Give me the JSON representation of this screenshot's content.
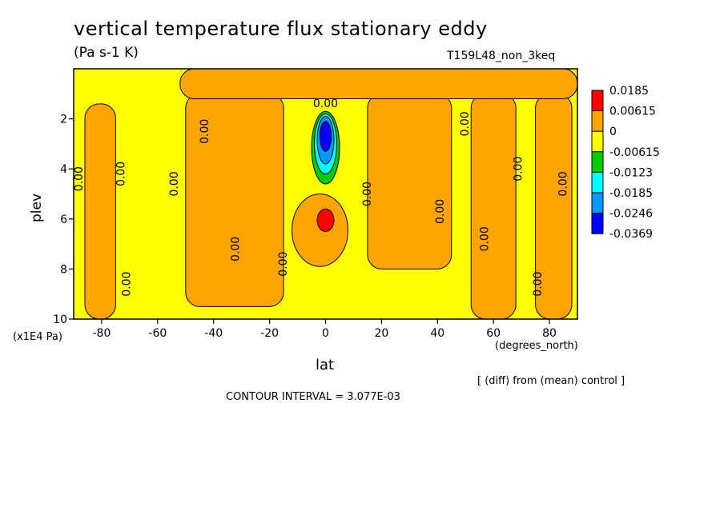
{
  "chart_data": {
    "type": "heatmap",
    "title": "vertical temperature flux stationary eddy",
    "units": "(Pa s-1 K)",
    "run_label": "T159L48_non_3keq",
    "xlabel": "lat",
    "x_unit": "(degrees_north)",
    "ylabel": "plev",
    "y_unit": "(x1E4 Pa)",
    "xlim": [
      -90,
      90
    ],
    "ylim": [
      10,
      0
    ],
    "x_ticks": [
      "-80",
      "-60",
      "-40",
      "-20",
      "0",
      "20",
      "40",
      "60",
      "80"
    ],
    "y_ticks": [
      "2",
      "4",
      "6",
      "8",
      "10"
    ],
    "legend": {
      "levels": [
        "0.0185",
        "0.00615",
        "0",
        "-0.00615",
        "-0.0123",
        "-0.0185",
        "-0.0246",
        "-0.0369"
      ],
      "colors": [
        "#ff0000",
        "#ffa500",
        "#ffff00",
        "#00cc00",
        "#00ffff",
        "#0099ff",
        "#0000ff"
      ]
    },
    "contour_label": "0.00",
    "diff_note": "[ (diff) from (mean) control ]",
    "contour_interval": "CONTOUR INTERVAL = 3.077E-03",
    "background_color": "#ffff00",
    "regions": [
      {
        "name": "positive-band",
        "color": "#ffa500",
        "bounds": {
          "lat": [
            -86,
            -75
          ],
          "plev": [
            1.4,
            10
          ]
        }
      },
      {
        "name": "positive-band",
        "color": "#ffa500",
        "bounds": {
          "lat": [
            -50,
            -15
          ],
          "plev": [
            1.0,
            9.5
          ]
        }
      },
      {
        "name": "positive-band",
        "color": "#ffa500",
        "bounds": {
          "lat": [
            15,
            45
          ],
          "plev": [
            1.0,
            8.0
          ]
        }
      },
      {
        "name": "positive-band",
        "color": "#ffa500",
        "bounds": {
          "lat": [
            52,
            68
          ],
          "plev": [
            1.0,
            10
          ]
        }
      },
      {
        "name": "positive-band",
        "color": "#ffa500",
        "bounds": {
          "lat": [
            75,
            88
          ],
          "plev": [
            1.0,
            10
          ]
        }
      },
      {
        "name": "positive-top",
        "color": "#ffa500",
        "bounds": {
          "lat": [
            -52,
            90
          ],
          "plev": [
            0,
            1.2
          ]
        }
      },
      {
        "name": "positive-core",
        "color": "#ffa500",
        "bounds": {
          "lat": [
            -12,
            8
          ],
          "plev": [
            5.0,
            7.9
          ]
        }
      },
      {
        "name": "strong-positive-core",
        "color": "#ff0000",
        "bounds": {
          "lat": [
            -3,
            3
          ],
          "plev": [
            5.6,
            6.5
          ]
        }
      },
      {
        "name": "negative-core",
        "color": "#00cc00",
        "bounds": {
          "lat": [
            -5,
            5
          ],
          "plev": [
            1.7,
            4.6
          ]
        }
      },
      {
        "name": "negative-core",
        "color": "#00ffff",
        "bounds": {
          "lat": [
            -4,
            4
          ],
          "plev": [
            1.8,
            4.2
          ]
        }
      },
      {
        "name": "negative-core",
        "color": "#0099ff",
        "bounds": {
          "lat": [
            -3,
            3
          ],
          "plev": [
            1.9,
            3.8
          ]
        }
      },
      {
        "name": "negative-core",
        "color": "#0000ff",
        "bounds": {
          "lat": [
            -2,
            2
          ],
          "plev": [
            2.1,
            3.3
          ]
        }
      }
    ]
  }
}
